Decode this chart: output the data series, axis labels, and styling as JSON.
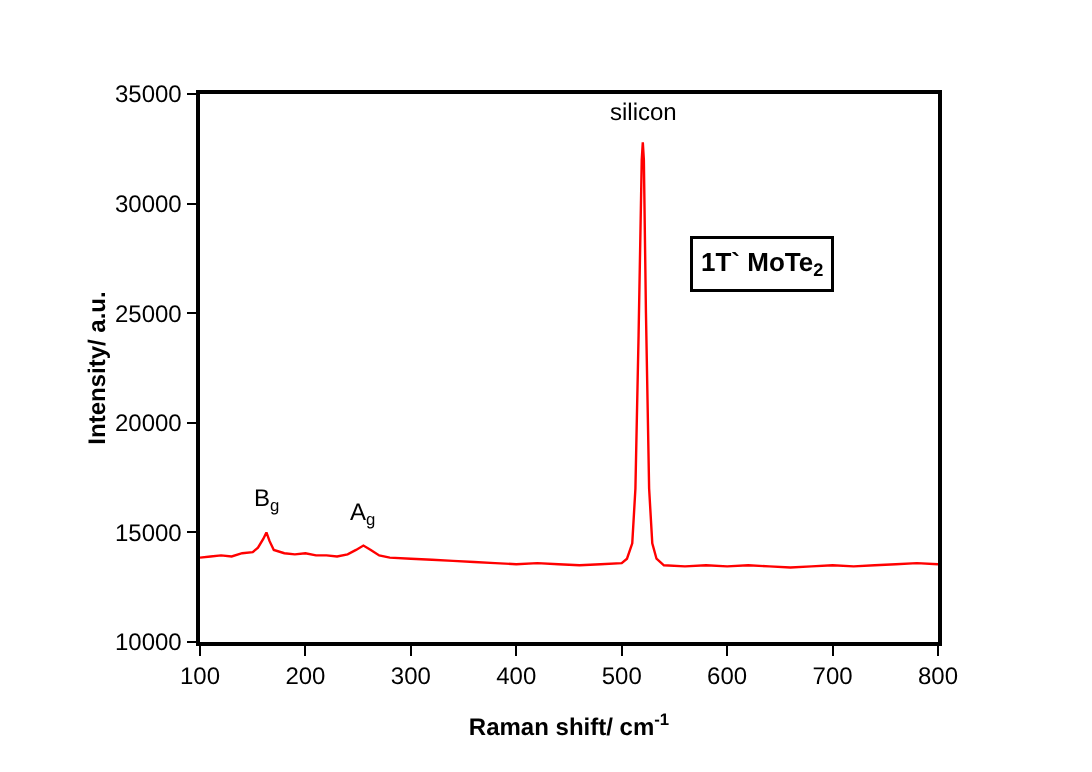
{
  "chart_data": {
    "type": "line",
    "xlabel": "Raman shift/ cm$^{-1}$",
    "ylabel": "Intensity/ a.u.",
    "x": [
      100,
      110,
      120,
      130,
      140,
      150,
      155,
      160,
      163,
      166,
      170,
      180,
      190,
      200,
      210,
      220,
      230,
      240,
      248,
      255,
      262,
      270,
      280,
      300,
      320,
      340,
      360,
      380,
      400,
      420,
      440,
      460,
      480,
      500,
      505,
      510,
      513,
      516,
      519,
      520,
      521,
      523,
      526,
      529,
      533,
      540,
      560,
      580,
      600,
      620,
      640,
      660,
      680,
      700,
      720,
      740,
      760,
      780,
      800
    ],
    "series": [
      {
        "color": "#ff0000",
        "values": [
          13850,
          13900,
          13950,
          13900,
          14050,
          14100,
          14300,
          14700,
          15000,
          14600,
          14200,
          14050,
          14000,
          14050,
          13950,
          13950,
          13900,
          14000,
          14200,
          14400,
          14200,
          13950,
          13850,
          13800,
          13750,
          13700,
          13650,
          13600,
          13550,
          13600,
          13550,
          13500,
          13550,
          13600,
          13800,
          14500,
          17000,
          24000,
          32000,
          32800,
          32000,
          25000,
          17000,
          14500,
          13800,
          13500,
          13450,
          13500,
          13450,
          13500,
          13450,
          13400,
          13450,
          13500,
          13450,
          13500,
          13550,
          13600,
          13550
        ]
      }
    ],
    "xlim": [
      100,
      800
    ],
    "xticks": [
      100,
      200,
      300,
      400,
      500,
      600,
      700,
      800
    ],
    "ylim": [
      10000,
      35000
    ],
    "yticks": [
      10000,
      15000,
      20000,
      25000,
      30000,
      35000
    ],
    "grid": false,
    "marker": "none",
    "line_style": "solid",
    "annotations": [
      {
        "text": "silicon",
        "x": 520,
        "y": 32800
      },
      {
        "text": "B$_{g}$",
        "x": 163,
        "y": 15000
      },
      {
        "text": "A$_{g}$",
        "x": 255,
        "y": 14400
      },
      "1T` MoTe$_{2}$"
    ]
  }
}
